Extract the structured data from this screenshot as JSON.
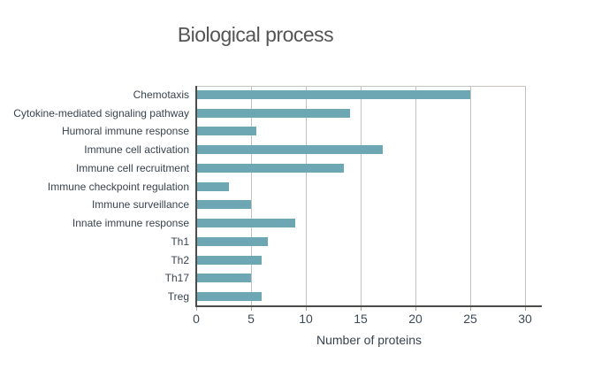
{
  "chart_data": {
    "type": "bar",
    "orientation": "horizontal",
    "title": "Biological process",
    "xlabel": "Number of proteins",
    "ylabel": "",
    "categories": [
      "Chemotaxis",
      "Cytokine-mediated signaling pathway",
      "Humoral immune response",
      "Immune cell activation",
      "Immune cell recruitment",
      "Immune checkpoint regulation",
      "Immune surveillance",
      "Innate immune response",
      "Th1",
      "Th2",
      "Th17",
      "Treg"
    ],
    "values": [
      25,
      14,
      5.5,
      17,
      13.5,
      3,
      5,
      9,
      6.5,
      6,
      5,
      6
    ],
    "xlim": [
      0,
      30
    ],
    "xticks": [
      0,
      5,
      10,
      15,
      20,
      25,
      30
    ],
    "grid": "vertical-gridlines-at-xticks",
    "legend": false,
    "colors": {
      "bar": "#6da7b4",
      "gridline": "#c6c1ba",
      "axis": "#4c4c4a",
      "category_text": "#39434d",
      "tick_text": "#3d4a57",
      "title_text": "#555555",
      "background": "#ffffff"
    }
  }
}
